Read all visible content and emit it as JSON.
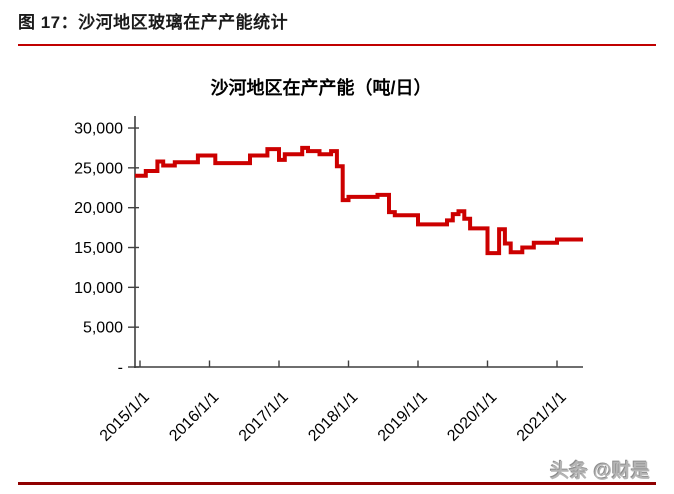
{
  "header": {
    "figure_title": "图 17：沙河地区玻璃在产产能统计"
  },
  "watermark": {
    "text": "头条 @财是"
  },
  "colors": {
    "rule_top": "#c00000",
    "rule_bottom": "#8f0000",
    "series_red": "#cc0000",
    "axis": "#3f3f3f",
    "tick_text": "#000000"
  },
  "chart_data": {
    "type": "line",
    "subtype": "step",
    "title": "沙河地区在产产能（吨/日）",
    "xlabel": "",
    "ylabel": "",
    "unit": "吨/日",
    "grid": false,
    "legend": "none",
    "ylim": [
      0,
      30000
    ],
    "y_ticks": [
      [
        0,
        "-"
      ],
      [
        5000,
        "5,000"
      ],
      [
        10000,
        "10,000"
      ],
      [
        15000,
        "15,000"
      ],
      [
        20000,
        "20,000"
      ],
      [
        25000,
        "25,000"
      ],
      [
        30000,
        "30,000"
      ]
    ],
    "x_tick_labels": [
      "2015/1/1",
      "2016/1/1",
      "2017/1/1",
      "2018/1/1",
      "2019/1/1",
      "2020/1/1",
      "2021/1/1"
    ],
    "series": [
      {
        "name": "沙河地区在产产能",
        "color": "#cc0000",
        "step": "after",
        "points": [
          [
            "2014-12",
            24000
          ],
          [
            "2015-02",
            24600
          ],
          [
            "2015-04",
            25800
          ],
          [
            "2015-05",
            25300
          ],
          [
            "2015-07",
            25700
          ],
          [
            "2015-11",
            26550
          ],
          [
            "2016-02",
            25600
          ],
          [
            "2016-08",
            26550
          ],
          [
            "2016-11",
            27350
          ],
          [
            "2017-01",
            26000
          ],
          [
            "2017-02",
            26700
          ],
          [
            "2017-05",
            27500
          ],
          [
            "2017-06",
            27100
          ],
          [
            "2017-08",
            26700
          ],
          [
            "2017-10",
            27100
          ],
          [
            "2017-11",
            25200
          ],
          [
            "2017-12",
            20950
          ],
          [
            "2018-01",
            21350
          ],
          [
            "2018-06",
            21600
          ],
          [
            "2018-08",
            19450
          ],
          [
            "2018-09",
            19050
          ],
          [
            "2019-01",
            17900
          ],
          [
            "2019-06",
            18400
          ],
          [
            "2019-07",
            19200
          ],
          [
            "2019-08",
            19550
          ],
          [
            "2019-09",
            18600
          ],
          [
            "2019-10",
            17400
          ],
          [
            "2020-01",
            14300
          ],
          [
            "2020-03",
            17300
          ],
          [
            "2020-04",
            15500
          ],
          [
            "2020-05",
            14400
          ],
          [
            "2020-07",
            15000
          ],
          [
            "2020-09",
            15600
          ],
          [
            "2021-01",
            16000
          ]
        ],
        "end": "2021-06"
      }
    ]
  }
}
